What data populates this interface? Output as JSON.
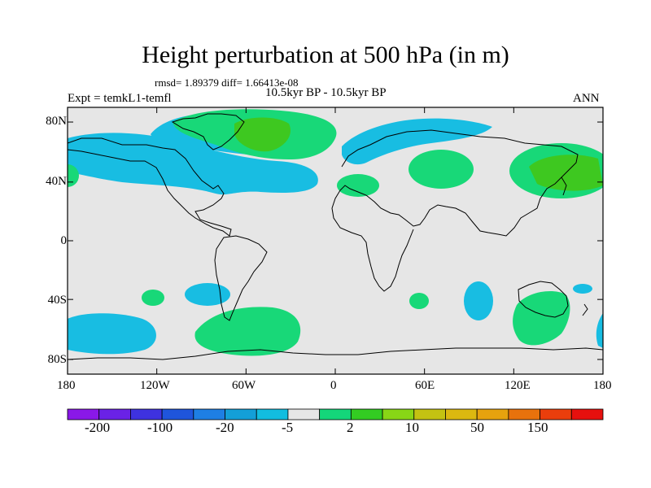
{
  "title": "Height perturbation at 500 hPa (in m)",
  "stats": "rmsd= 1.89379 diff= 1.66413e-08",
  "period": "10.5kyr BP - 10.5kyr BP",
  "experiment": "Expt = temkL1-temfl",
  "season": "ANN",
  "lat_labels": [
    "80N",
    "40N",
    "0",
    "40S",
    "80S"
  ],
  "lon_labels": [
    "180",
    "120W",
    "60W",
    "0",
    "60E",
    "120E",
    "180"
  ],
  "colorbar": {
    "labels": [
      "-200",
      "-100",
      "-20",
      "-5",
      "2",
      "10",
      "50",
      "150"
    ],
    "colors": [
      "#8a18e8",
      "#6a22e6",
      "#3e32e0",
      "#1f55dc",
      "#1e7fe4",
      "#139fd8",
      "#12bde0",
      "#e6e6e6",
      "#14d67a",
      "#33cc22",
      "#88d616",
      "#c4c212",
      "#dcb810",
      "#e6a20e",
      "#e8720c",
      "#ea3e0c",
      "#e6100e"
    ]
  },
  "map_colors": {
    "background": "#e6e6e6",
    "negative": "#18bde2",
    "positive_light": "#18d878",
    "positive_dark": "#3ec820"
  }
}
